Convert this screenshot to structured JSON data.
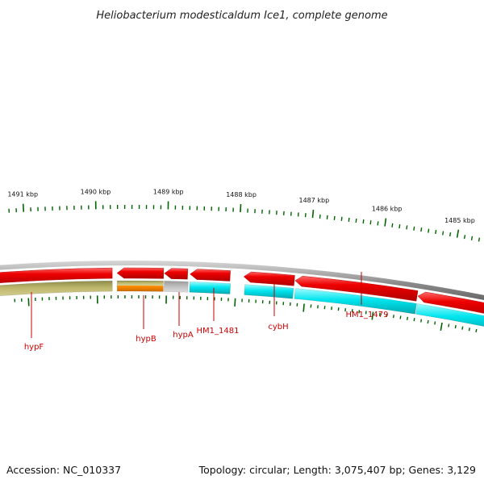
{
  "title": "Heliobacterium modesticaldum Ice1, complete genome",
  "footer": {
    "accession": "Accession: NC_010337",
    "summary": "Topology: circular; Length: 3,075,407 bp; Genes: 3,129"
  },
  "colors": {
    "backbone": "#8a8a8a",
    "gene_red": "#ee0000",
    "gene_cyan": "#00e5ee",
    "gene_olive": "#bdb76b",
    "gene_orange": "#ff8c00",
    "gene_gray": "#c0c0c0",
    "tick_green": "#006400",
    "label_red": "#cc0000"
  },
  "kbp_ticks": [
    {
      "label": "1491 kbp",
      "kbp": 1491
    },
    {
      "label": "1490 kbp",
      "kbp": 1490
    },
    {
      "label": "1489 kbp",
      "kbp": 1489
    },
    {
      "label": "1488 kbp",
      "kbp": 1488
    },
    {
      "label": "1487 kbp",
      "kbp": 1487
    },
    {
      "label": "1486 kbp",
      "kbp": 1486
    },
    {
      "label": "1485 kbp",
      "kbp": 1485
    }
  ],
  "genes": [
    {
      "label": "hypF",
      "color": "olive"
    },
    {
      "label": "hypB",
      "color": "orange"
    },
    {
      "label": "hypA",
      "color": "gray"
    },
    {
      "label": "HM1_1481",
      "color": "cyan"
    },
    {
      "label": "cybH",
      "color": "cyan"
    },
    {
      "label": "HM1_1479",
      "color": "cyan"
    }
  ]
}
